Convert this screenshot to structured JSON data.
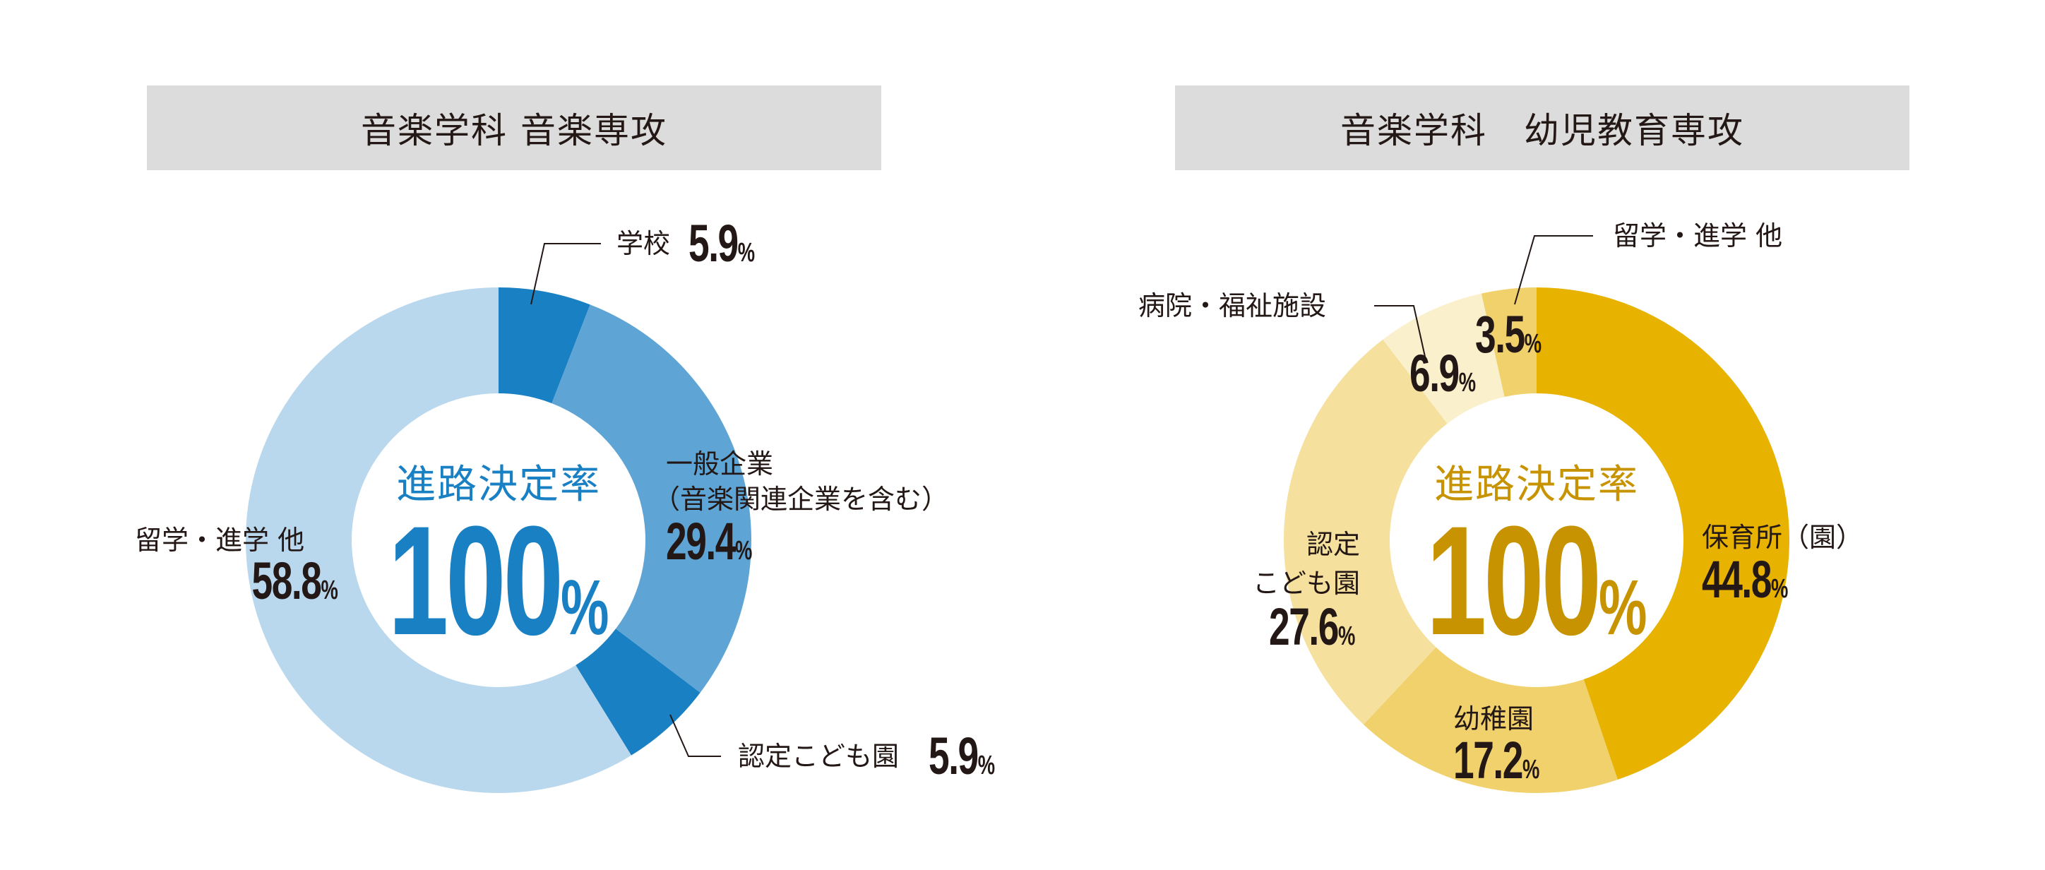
{
  "chart_data": [
    {
      "type": "pie",
      "title": "音楽学科 音楽専攻",
      "center_label": "進路決定率",
      "center_value": "100",
      "unit": "%",
      "slices": [
        {
          "label": "学校",
          "value": 5.9,
          "color": "#1a80c4"
        },
        {
          "label": "一般企業（音楽関連企業を含む）",
          "label_line1": "一般企業",
          "label_line2": "（音楽関連企業を含む）",
          "value": 29.4,
          "color": "#5ea5d6"
        },
        {
          "label": "認定こども園",
          "value": 5.9,
          "color": "#1a80c4"
        },
        {
          "label": "留学・進学 他",
          "value": 58.8,
          "color": "#b9d8ee"
        }
      ],
      "accent": "#1a80c4"
    },
    {
      "type": "pie",
      "title": "音楽学科　幼児教育専攻",
      "center_label": "進路決定率",
      "center_value": "100",
      "unit": "%",
      "slices": [
        {
          "label": "保育所（園）",
          "value": 44.8,
          "color": "#e8b200"
        },
        {
          "label": "幼稚園",
          "value": 17.2,
          "color": "#f0d16c"
        },
        {
          "label": "認定こども園",
          "label_line1": "認定",
          "label_line2": "こども園",
          "value": 27.6,
          "color": "#f5e09e"
        },
        {
          "label": "病院・福祉施設",
          "value": 6.9,
          "color": "#faf0cc"
        },
        {
          "label": "留学・進学 他",
          "value": 3.5,
          "color": "#f0d16c"
        }
      ],
      "accent": "#c79300"
    }
  ]
}
